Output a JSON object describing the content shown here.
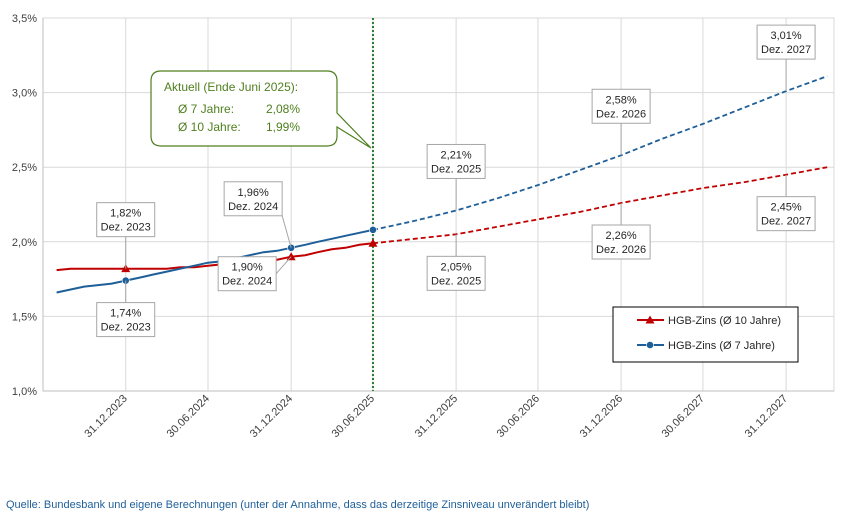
{
  "chart_data": {
    "type": "line",
    "x_axis": {
      "type": "date",
      "ticks": [
        "31.12.2023",
        "30.06.2024",
        "31.12.2024",
        "30.06.2025",
        "31.12.2025",
        "30.06.2026",
        "31.12.2026",
        "30.06.2027",
        "31.12.2027"
      ]
    },
    "y_axis": {
      "ylim": [
        1.0,
        3.5
      ],
      "ticks": [
        "1,0%",
        "1,5%",
        "2,0%",
        "2,5%",
        "3,0%",
        "3,5%"
      ]
    },
    "grid": true,
    "legend_position": "bottom-right",
    "colors": {
      "hgb10": "#c00000",
      "hgb7": "#1f5f99",
      "current_line": "#2e7d32",
      "aktuell": "#4f7f1f"
    },
    "series": [
      {
        "key": "hgb10",
        "name": "HGB-Zins (Ø 10 Jahre)",
        "marker": "triangle",
        "actual": [
          [
            "2023-07-31",
            1.81
          ],
          [
            "2023-08-31",
            1.82
          ],
          [
            "2023-09-30",
            1.82
          ],
          [
            "2023-10-31",
            1.82
          ],
          [
            "2023-11-30",
            1.82
          ],
          [
            "2023-12-31",
            1.82
          ],
          [
            "2024-01-31",
            1.82
          ],
          [
            "2024-02-29",
            1.82
          ],
          [
            "2024-03-31",
            1.82
          ],
          [
            "2024-04-30",
            1.83
          ],
          [
            "2024-05-31",
            1.83
          ],
          [
            "2024-06-30",
            1.84
          ],
          [
            "2024-07-31",
            1.85
          ],
          [
            "2024-08-31",
            1.86
          ],
          [
            "2024-09-30",
            1.87
          ],
          [
            "2024-10-31",
            1.88
          ],
          [
            "2024-11-30",
            1.88
          ],
          [
            "2024-12-31",
            1.9
          ],
          [
            "2025-01-31",
            1.91
          ],
          [
            "2025-02-28",
            1.93
          ],
          [
            "2025-03-31",
            1.95
          ],
          [
            "2025-04-30",
            1.96
          ],
          [
            "2025-05-31",
            1.98
          ],
          [
            "2025-06-30",
            1.99
          ]
        ],
        "forecast": [
          [
            "2025-06-30",
            1.99
          ],
          [
            "2025-09-30",
            2.02
          ],
          [
            "2025-12-31",
            2.05
          ],
          [
            "2026-03-31",
            2.1
          ],
          [
            "2026-06-30",
            2.15
          ],
          [
            "2026-09-30",
            2.2
          ],
          [
            "2026-12-31",
            2.26
          ],
          [
            "2027-03-31",
            2.31
          ],
          [
            "2027-06-30",
            2.36
          ],
          [
            "2027-09-30",
            2.4
          ],
          [
            "2027-12-31",
            2.45
          ],
          [
            "2028-03-31",
            2.5
          ]
        ],
        "marked_points": [
          "2023-12-31",
          "2024-12-31",
          "2025-06-30"
        ]
      },
      {
        "key": "hgb7",
        "name": "HGB-Zins (Ø 7 Jahre)",
        "marker": "circle",
        "actual": [
          [
            "2023-07-31",
            1.66
          ],
          [
            "2023-08-31",
            1.68
          ],
          [
            "2023-09-30",
            1.7
          ],
          [
            "2023-10-31",
            1.71
          ],
          [
            "2023-11-30",
            1.72
          ],
          [
            "2023-12-31",
            1.74
          ],
          [
            "2024-01-31",
            1.76
          ],
          [
            "2024-02-29",
            1.78
          ],
          [
            "2024-03-31",
            1.8
          ],
          [
            "2024-04-30",
            1.82
          ],
          [
            "2024-05-31",
            1.84
          ],
          [
            "2024-06-30",
            1.86
          ],
          [
            "2024-07-31",
            1.87
          ],
          [
            "2024-08-31",
            1.89
          ],
          [
            "2024-09-30",
            1.91
          ],
          [
            "2024-10-31",
            1.93
          ],
          [
            "2024-11-30",
            1.94
          ],
          [
            "2024-12-31",
            1.96
          ],
          [
            "2025-01-31",
            1.98
          ],
          [
            "2025-02-28",
            2.0
          ],
          [
            "2025-03-31",
            2.02
          ],
          [
            "2025-04-30",
            2.04
          ],
          [
            "2025-05-31",
            2.06
          ],
          [
            "2025-06-30",
            2.08
          ]
        ],
        "forecast": [
          [
            "2025-06-30",
            2.08
          ],
          [
            "2025-09-30",
            2.14
          ],
          [
            "2025-12-31",
            2.21
          ],
          [
            "2026-03-31",
            2.29
          ],
          [
            "2026-06-30",
            2.38
          ],
          [
            "2026-09-30",
            2.48
          ],
          [
            "2026-12-31",
            2.58
          ],
          [
            "2027-03-31",
            2.69
          ],
          [
            "2027-06-30",
            2.79
          ],
          [
            "2027-09-30",
            2.9
          ],
          [
            "2027-12-31",
            3.01
          ],
          [
            "2028-03-31",
            3.11
          ]
        ],
        "marked_points": [
          "2023-12-31",
          "2024-12-31",
          "2025-06-30"
        ]
      }
    ],
    "annotations": [
      {
        "series": "hgb10",
        "x": "2023-12-31",
        "value": "1,82%",
        "label": "Dez. 2023",
        "place": "above"
      },
      {
        "series": "hgb7",
        "x": "2023-12-31",
        "value": "1,74%",
        "label": "Dez. 2023",
        "place": "below"
      },
      {
        "series": "hgb7",
        "x": "2024-12-31",
        "value": "1,96%",
        "label": "Dez. 2024",
        "place": "above-left"
      },
      {
        "series": "hgb10",
        "x": "2024-12-31",
        "value": "1,90%",
        "label": "Dez. 2024",
        "place": "below-left"
      },
      {
        "series": "hgb7",
        "x": "2025-12-31",
        "value": "2,21%",
        "label": "Dez. 2025",
        "place": "above"
      },
      {
        "series": "hgb10",
        "x": "2025-12-31",
        "value": "2,05%",
        "label": "Dez. 2025",
        "place": "below"
      },
      {
        "series": "hgb7",
        "x": "2026-12-31",
        "value": "2,58%",
        "label": "Dez. 2026",
        "place": "above"
      },
      {
        "series": "hgb10",
        "x": "2026-12-31",
        "value": "2,26%",
        "label": "Dez. 2026",
        "place": "below"
      },
      {
        "series": "hgb7",
        "x": "2027-12-31",
        "value": "3,01%",
        "label": "Dez. 2027",
        "place": "above"
      },
      {
        "series": "hgb10",
        "x": "2027-12-31",
        "value": "2,45%",
        "label": "Dez. 2027",
        "place": "below"
      }
    ],
    "current_marker_date": "2025-06-30",
    "aktuell_box": {
      "title": "Aktuell (Ende Juni 2025):",
      "rows": [
        {
          "label": "Ø 7 Jahre:",
          "value": "2,08%"
        },
        {
          "label": "Ø 10 Jahre:",
          "value": "1,99%"
        }
      ]
    }
  },
  "source_note": "Quelle: Bundesbank und eigene Berechnungen (unter der Annahme, dass das derzeitige Zinsniveau unverändert bleibt)"
}
